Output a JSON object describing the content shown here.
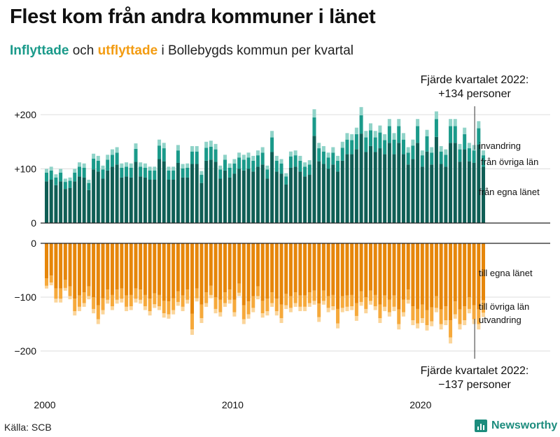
{
  "header": {
    "title": "Flest kom från andra kommuner i länet",
    "subtitle_inflyttade": "Inflyttade",
    "subtitle_och": "och",
    "subtitle_utflyttade": "utflyttade",
    "subtitle_rest": "i Bollebygds kommun per kvartal"
  },
  "footer": {
    "source": "Källa: SCB",
    "brand": "Newsworthy"
  },
  "colors": {
    "in_own": "#0f5e55",
    "in_other": "#1a9a8a",
    "in_imm": "#8fd3c8",
    "out_own": "#e6860a",
    "out_other": "#f6a93b",
    "out_emi": "#fbd59a",
    "gridline": "#dddddd"
  },
  "chart_data": {
    "type": "bar",
    "stacked": true,
    "x_tick_labels": [
      "2000",
      "2010",
      "2020"
    ],
    "y_tick_labels_top": [
      "+200",
      "+100",
      "0"
    ],
    "y_tick_labels_bottom": [
      "0",
      "−100",
      "−200"
    ],
    "ylim_top": [
      0,
      200
    ],
    "ylim_bottom": [
      -200,
      0
    ],
    "annotation_top": {
      "line1": "Fjärde kvartalet 2022:",
      "line2": "+134 personer"
    },
    "annotation_bottom": {
      "line1": "Fjärde kvartalet 2022:",
      "line2": "−137 personer"
    },
    "top_legend": [
      "invandring",
      "från övriga län",
      "från egna länet"
    ],
    "bottom_legend": [
      "till egna länet",
      "till övriga län",
      "utvandring"
    ],
    "quarters": [
      "2000Q1",
      "2000Q2",
      "2000Q3",
      "2000Q4",
      "2001Q1",
      "2001Q2",
      "2001Q3",
      "2001Q4",
      "2002Q1",
      "2002Q2",
      "2002Q3",
      "2002Q4",
      "2003Q1",
      "2003Q2",
      "2003Q3",
      "2003Q4",
      "2004Q1",
      "2004Q2",
      "2004Q3",
      "2004Q4",
      "2005Q1",
      "2005Q2",
      "2005Q3",
      "2005Q4",
      "2006Q1",
      "2006Q2",
      "2006Q3",
      "2006Q4",
      "2007Q1",
      "2007Q2",
      "2007Q3",
      "2007Q4",
      "2008Q1",
      "2008Q2",
      "2008Q3",
      "2008Q4",
      "2009Q1",
      "2009Q2",
      "2009Q3",
      "2009Q4",
      "2010Q1",
      "2010Q2",
      "2010Q3",
      "2010Q4",
      "2011Q1",
      "2011Q2",
      "2011Q3",
      "2011Q4",
      "2012Q1",
      "2012Q2",
      "2012Q3",
      "2012Q4",
      "2013Q1",
      "2013Q2",
      "2013Q3",
      "2013Q4",
      "2014Q1",
      "2014Q2",
      "2014Q3",
      "2014Q4",
      "2015Q1",
      "2015Q2",
      "2015Q3",
      "2015Q4",
      "2016Q1",
      "2016Q2",
      "2016Q3",
      "2016Q4",
      "2017Q1",
      "2017Q2",
      "2017Q3",
      "2017Q4",
      "2018Q1",
      "2018Q2",
      "2018Q3",
      "2018Q4",
      "2019Q1",
      "2019Q2",
      "2019Q3",
      "2019Q4",
      "2020Q1",
      "2020Q2",
      "2020Q3",
      "2020Q4",
      "2021Q1",
      "2021Q2",
      "2021Q3",
      "2021Q4",
      "2022Q1",
      "2022Q2",
      "2022Q3",
      "2022Q4"
    ],
    "inflyttade_totals": [
      100,
      104,
      90,
      100,
      82,
      84,
      100,
      112,
      110,
      80,
      128,
      124,
      106,
      126,
      136,
      140,
      110,
      112,
      110,
      147,
      112,
      110,
      104,
      104,
      154,
      148,
      104,
      104,
      144,
      109,
      110,
      142,
      142,
      96,
      150,
      152,
      146,
      106,
      126,
      110,
      118,
      130,
      126,
      130,
      124,
      134,
      140,
      106,
      170,
      124,
      118,
      92,
      132,
      134,
      124,
      112,
      116,
      210,
      148,
      142,
      130,
      140,
      124,
      150,
      166,
      164,
      176,
      214,
      170,
      184,
      170,
      180,
      164,
      192,
      166,
      192,
      166,
      140,
      154,
      192,
      134,
      172,
      140,
      206,
      142,
      136,
      192,
      192,
      146,
      176,
      148,
      144,
      188,
      134
    ],
    "utflyttade_totals": [
      -84,
      -78,
      -110,
      -110,
      -88,
      -104,
      -134,
      -126,
      -118,
      -104,
      -130,
      -150,
      -132,
      -112,
      -124,
      -112,
      -110,
      -126,
      -124,
      -110,
      -112,
      -124,
      -134,
      -120,
      -124,
      -138,
      -140,
      -132,
      -116,
      -126,
      -112,
      -170,
      -108,
      -148,
      -118,
      -102,
      -130,
      -136,
      -118,
      -112,
      -136,
      -98,
      -150,
      -140,
      -128,
      -104,
      -138,
      -134,
      -118,
      -134,
      -148,
      -122,
      -128,
      -118,
      -126,
      -126,
      -118,
      -114,
      -146,
      -114,
      -128,
      -124,
      -158,
      -128,
      -126,
      -124,
      -144,
      -116,
      -130,
      -114,
      -124,
      -148,
      -126,
      -136,
      -126,
      -160,
      -136,
      -112,
      -152,
      -158,
      -148,
      -162,
      -154,
      -128,
      -160,
      -152,
      -186,
      -140,
      -160,
      -152,
      -130,
      -150,
      -160,
      -137
    ]
  }
}
